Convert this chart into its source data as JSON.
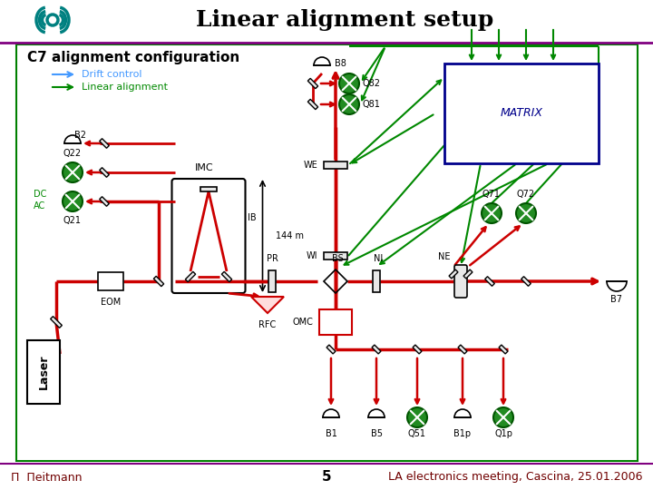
{
  "title": "Linear alignment setup",
  "title_fontsize": 18,
  "title_fontweight": "bold",
  "bg_color": "#ffffff",
  "header_line_color": "#800080",
  "footer_line_color": "#800080",
  "footer_left": "П  Пeitmann",
  "footer_center": "5",
  "footer_right": "LA electronics meeting, Cascina, 25.01.2006",
  "footer_fontsize": 9,
  "diagram_border_color": "#008000",
  "config_title": "C7 alignment configuration",
  "legend_drift_label": "Drift control",
  "legend_linear_label": "Linear alignment",
  "legend_drift_color": "#4499ff",
  "legend_linear_color": "#008800",
  "red_beam_color": "#cc0000",
  "green_color": "#008800",
  "green_fill": "#228B22",
  "matrix_border_color": "#00008B",
  "matrix_text": "MATRIX",
  "logo_color": "#008080"
}
